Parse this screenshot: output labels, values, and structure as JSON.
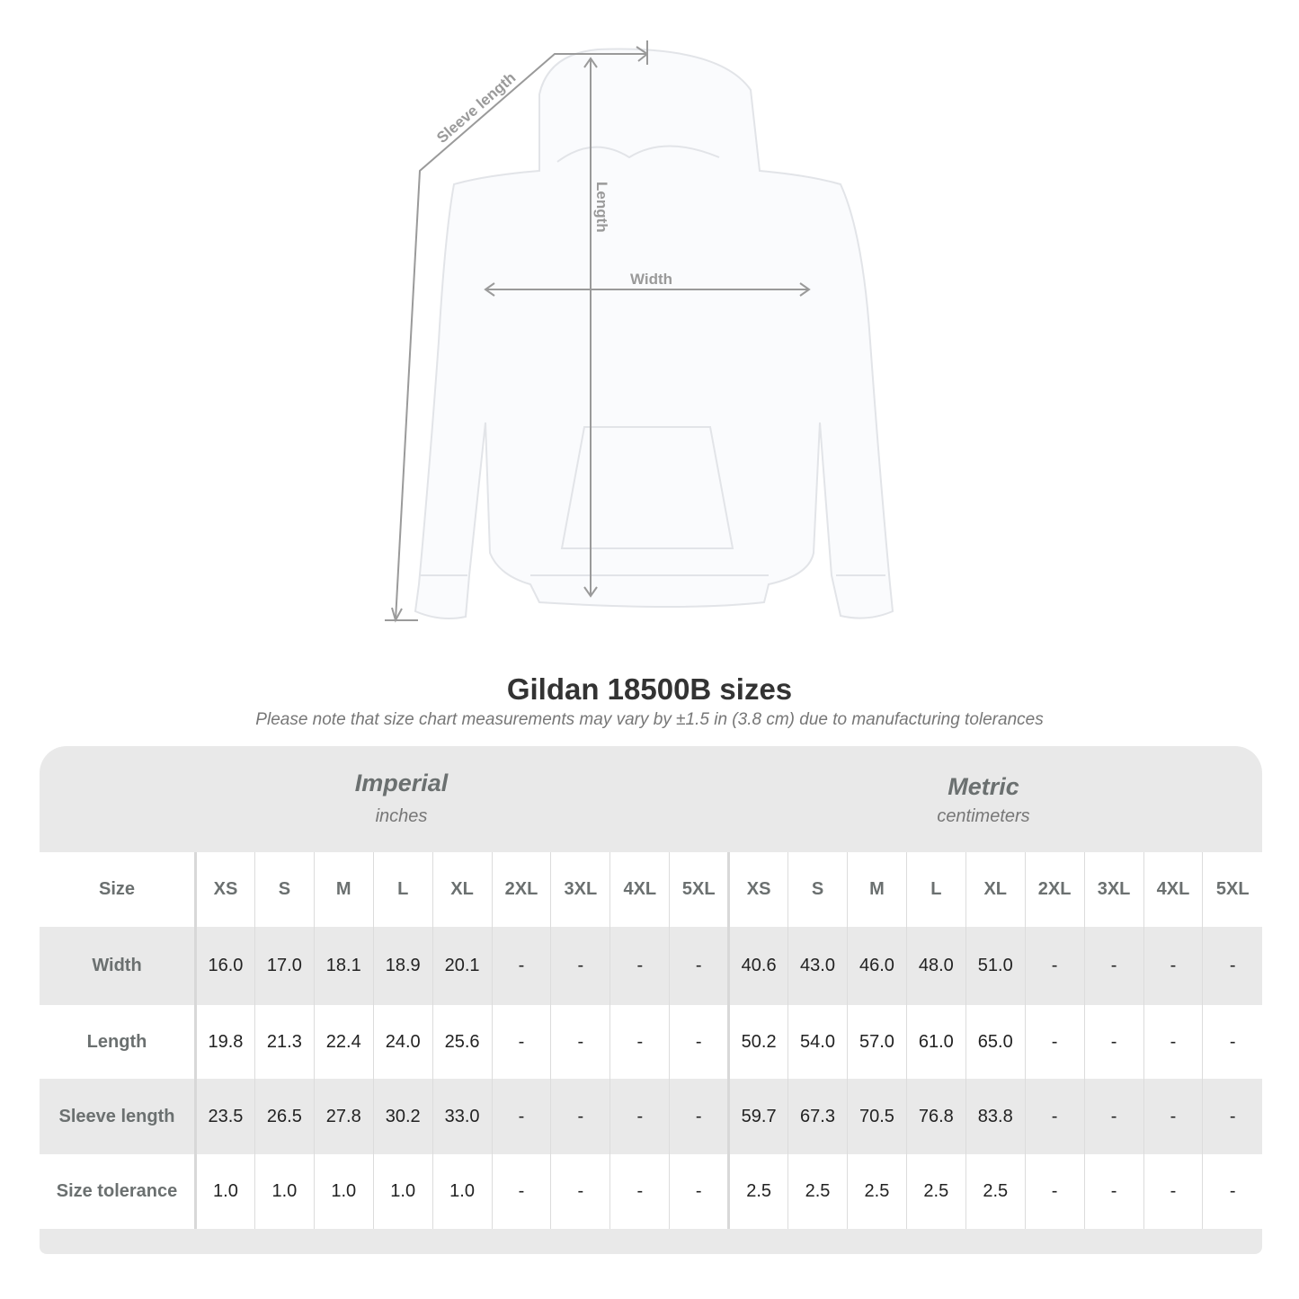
{
  "diagram": {
    "sleeve_label": "Sleeve length",
    "length_label": "Length",
    "width_label": "Width"
  },
  "title": "Gildan 18500B sizes",
  "note": "Please note that size chart measurements may vary by ±1.5 in (3.8 cm) due to manufacturing tolerances",
  "groups": [
    {
      "title": "Imperial",
      "unit": "inches"
    },
    {
      "title": "Metric",
      "unit": "centimeters"
    }
  ],
  "size_header": "Size",
  "sizes": [
    "XS",
    "S",
    "M",
    "L",
    "XL",
    "2XL",
    "3XL",
    "4XL",
    "5XL"
  ],
  "rows": [
    {
      "label": "Width",
      "imperial": [
        "16.0",
        "17.0",
        "18.1",
        "18.9",
        "20.1",
        "-",
        "-",
        "-",
        "-"
      ],
      "metric": [
        "40.6",
        "43.0",
        "46.0",
        "48.0",
        "51.0",
        "-",
        "-",
        "-",
        "-"
      ]
    },
    {
      "label": "Length",
      "imperial": [
        "19.8",
        "21.3",
        "22.4",
        "24.0",
        "25.6",
        "-",
        "-",
        "-",
        "-"
      ],
      "metric": [
        "50.2",
        "54.0",
        "57.0",
        "61.0",
        "65.0",
        "-",
        "-",
        "-",
        "-"
      ]
    },
    {
      "label": "Sleeve length",
      "imperial": [
        "23.5",
        "26.5",
        "27.8",
        "30.2",
        "33.0",
        "-",
        "-",
        "-",
        "-"
      ],
      "metric": [
        "59.7",
        "67.3",
        "70.5",
        "76.8",
        "83.8",
        "-",
        "-",
        "-",
        "-"
      ]
    },
    {
      "label": "Size tolerance",
      "imperial": [
        "1.0",
        "1.0",
        "1.0",
        "1.0",
        "1.0",
        "-",
        "-",
        "-",
        "-"
      ],
      "metric": [
        "2.5",
        "2.5",
        "2.5",
        "2.5",
        "2.5",
        "-",
        "-",
        "-",
        "-"
      ]
    }
  ],
  "colors": {
    "card": "#e9e9e9",
    "label": "#6b7070",
    "measure_line": "#999999"
  }
}
